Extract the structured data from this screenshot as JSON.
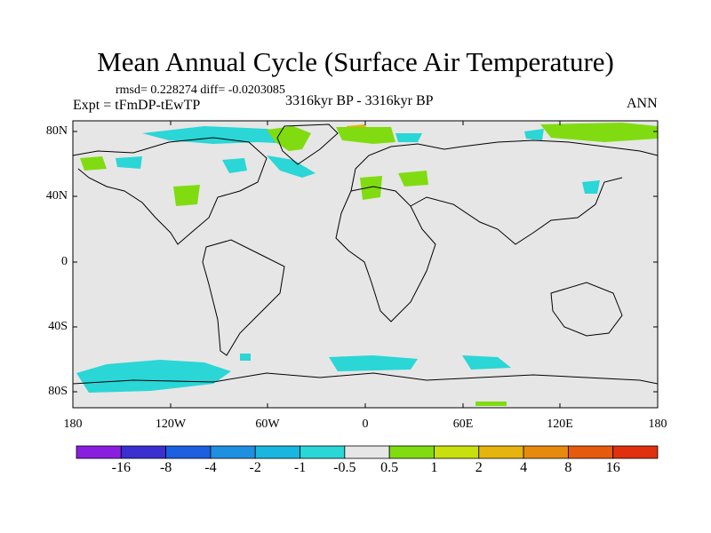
{
  "title": "Mean Annual Cycle (Surface Air Temperature)",
  "stats": "rmsd= 0.228274 diff= -0.0203085",
  "expt": "Expt = tFmDP-tEwTP",
  "period": "3316kyr BP - 3316kyr BP",
  "season": "ANN",
  "lat_labels": [
    "80N",
    "40N",
    "0",
    "40S",
    "80S"
  ],
  "lon_labels": [
    "180",
    "120W",
    "60W",
    "0",
    "60E",
    "120E",
    "180"
  ],
  "colorbar": {
    "labels": [
      "-16",
      "-8",
      "-4",
      "-2",
      "-1",
      "-0.5",
      "0.5",
      "1",
      "2",
      "4",
      "8",
      "16"
    ],
    "colors": [
      "#8a1ee0",
      "#3a2fd0",
      "#1c5fe0",
      "#1f8fe0",
      "#19b6e0",
      "#2ad6d6",
      "#e6e6e6",
      "#80dc10",
      "#c8e00e",
      "#e6b40e",
      "#e68a0e",
      "#e65a0e",
      "#e0300e"
    ]
  },
  "colors": {
    "land_bg": "#e6e6e6",
    "coast": "#000000"
  }
}
